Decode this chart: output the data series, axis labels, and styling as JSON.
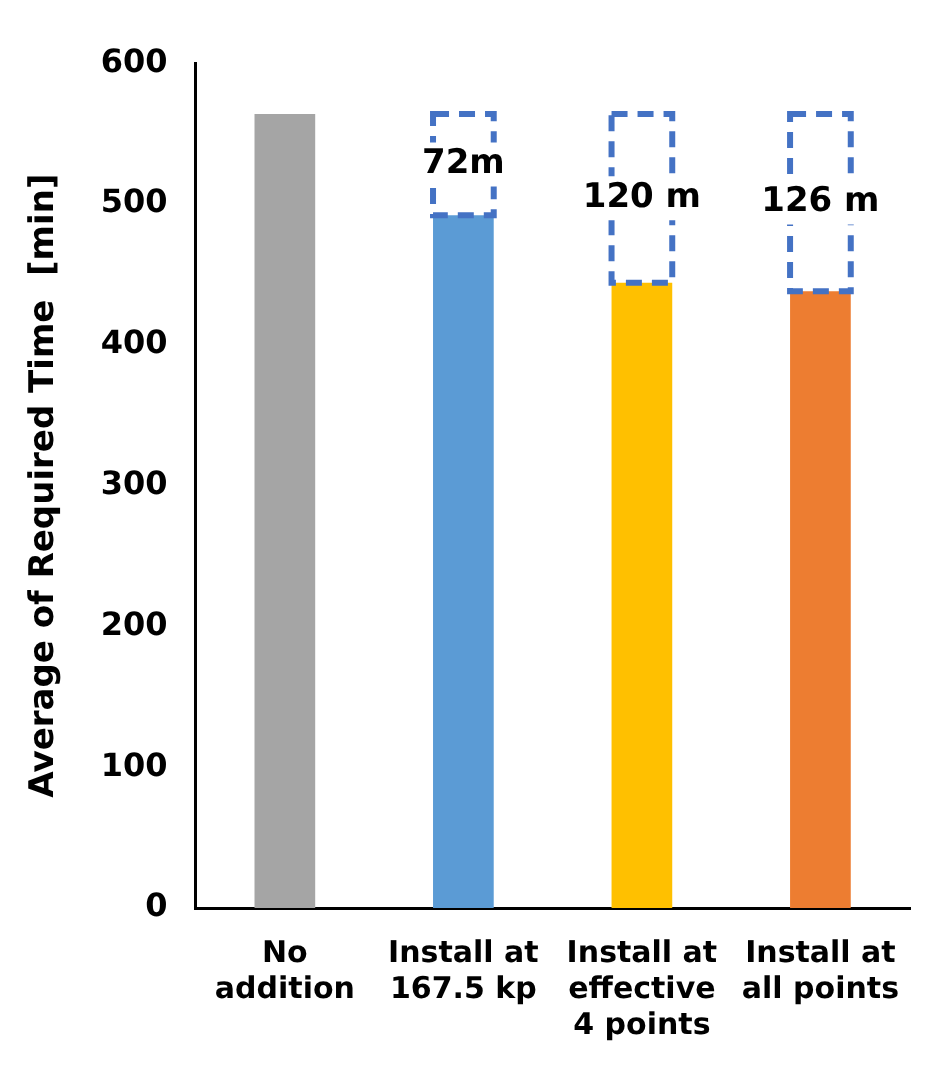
{
  "chart_data": {
    "type": "bar",
    "ylabel": "Average of Required Time  [min]",
    "categories": [
      "No addition",
      "Install at 167.5 kp",
      "Install at effective 4 points",
      "Install at all points"
    ],
    "series": [
      {
        "colors": [
          "#a5a5a5",
          "#5b9bd5",
          "#ffc000",
          "#ed7d31"
        ],
        "values": [
          564,
          492,
          444,
          438
        ]
      },
      {
        "color": "#4472c4",
        "line_style": "dashed",
        "base": [
          null,
          492,
          444,
          438
        ],
        "values": [
          null,
          72,
          120,
          126
        ],
        "value_labels": [
          null,
          "72m",
          "120 m",
          "126 m"
        ]
      }
    ],
    "ylim": [
      0,
      600
    ],
    "yticks": [
      0,
      100,
      200,
      300,
      400,
      500,
      600
    ],
    "grid": false,
    "legend": false
  }
}
